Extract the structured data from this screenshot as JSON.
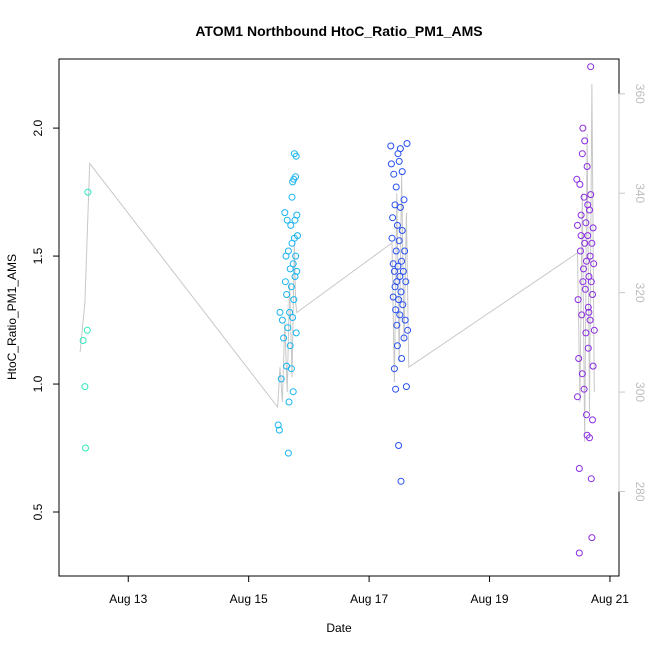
{
  "chart_data": {
    "type": "scatter",
    "title": "ATOM1 Northbound HtoC_Ratio_PM1_AMS",
    "xlabel": "Date",
    "ylabel": "HtoC_Ratio_PM1_AMS",
    "x_tick_labels": [
      "Aug 13",
      "Aug 15",
      "Aug 17",
      "Aug 19",
      "Aug 21"
    ],
    "x_tick_days": [
      13,
      15,
      17,
      19,
      21
    ],
    "xlim_days": [
      11.85,
      21.15
    ],
    "y_ticks": [
      0.5,
      1.0,
      1.5,
      2.0
    ],
    "y_tick_labels": [
      "0.5",
      "1.0",
      "1.5",
      "2.0"
    ],
    "ylim": [
      0.25,
      2.27
    ],
    "y2_ticks": [
      280,
      300,
      320,
      340,
      360
    ],
    "y2_tick_labels": [
      "280",
      "300",
      "320",
      "340",
      "360"
    ],
    "y2lim": [
      263,
      367
    ],
    "y2_color": "#c8c8c8",
    "grid": false,
    "legend": "none",
    "series": [
      {
        "color": "#2ee8c0",
        "points": [
          {
            "x": 12.25,
            "y": 1.17
          },
          {
            "x": 12.32,
            "y": 1.21
          },
          {
            "x": 12.28,
            "y": 0.99
          },
          {
            "x": 12.29,
            "y": 0.75
          },
          {
            "x": 12.33,
            "y": 1.75
          }
        ]
      },
      {
        "color": "#1ab4f0",
        "points": [
          {
            "x": 15.49,
            "y": 0.84
          },
          {
            "x": 15.51,
            "y": 0.82
          },
          {
            "x": 15.52,
            "y": 1.28
          },
          {
            "x": 15.54,
            "y": 1.02
          },
          {
            "x": 15.56,
            "y": 1.25
          },
          {
            "x": 15.58,
            "y": 1.18
          },
          {
            "x": 15.6,
            "y": 1.67
          },
          {
            "x": 15.61,
            "y": 1.4
          },
          {
            "x": 15.62,
            "y": 1.5
          },
          {
            "x": 15.63,
            "y": 1.35
          },
          {
            "x": 15.64,
            "y": 1.64
          },
          {
            "x": 15.65,
            "y": 1.22
          },
          {
            "x": 15.66,
            "y": 1.52
          },
          {
            "x": 15.66,
            "y": 0.73
          },
          {
            "x": 15.67,
            "y": 0.93
          },
          {
            "x": 15.68,
            "y": 1.28
          },
          {
            "x": 15.69,
            "y": 1.45
          },
          {
            "x": 15.7,
            "y": 1.62
          },
          {
            "x": 15.71,
            "y": 1.38
          },
          {
            "x": 15.72,
            "y": 1.55
          },
          {
            "x": 15.72,
            "y": 1.73
          },
          {
            "x": 15.73,
            "y": 1.79
          },
          {
            "x": 15.73,
            "y": 1.26
          },
          {
            "x": 15.74,
            "y": 1.47
          },
          {
            "x": 15.74,
            "y": 0.97
          },
          {
            "x": 15.75,
            "y": 1.8
          },
          {
            "x": 15.75,
            "y": 1.33
          },
          {
            "x": 15.76,
            "y": 1.9
          },
          {
            "x": 15.76,
            "y": 1.57
          },
          {
            "x": 15.77,
            "y": 1.64
          },
          {
            "x": 15.77,
            "y": 1.42
          },
          {
            "x": 15.78,
            "y": 1.81
          },
          {
            "x": 15.78,
            "y": 1.5
          },
          {
            "x": 15.79,
            "y": 1.89
          },
          {
            "x": 15.79,
            "y": 1.2
          },
          {
            "x": 15.8,
            "y": 1.66
          },
          {
            "x": 15.8,
            "y": 1.44
          },
          {
            "x": 15.81,
            "y": 1.58
          },
          {
            "x": 15.71,
            "y": 1.06
          },
          {
            "x": 15.69,
            "y": 1.15
          },
          {
            "x": 15.63,
            "y": 1.07
          }
        ]
      },
      {
        "color": "#2850f0",
        "points": [
          {
            "x": 17.36,
            "y": 1.93
          },
          {
            "x": 17.37,
            "y": 1.86
          },
          {
            "x": 17.38,
            "y": 1.57
          },
          {
            "x": 17.39,
            "y": 1.65
          },
          {
            "x": 17.4,
            "y": 1.47
          },
          {
            "x": 17.4,
            "y": 1.34
          },
          {
            "x": 17.41,
            "y": 1.82
          },
          {
            "x": 17.42,
            "y": 1.44
          },
          {
            "x": 17.42,
            "y": 1.06
          },
          {
            "x": 17.43,
            "y": 1.7
          },
          {
            "x": 17.43,
            "y": 1.38
          },
          {
            "x": 17.44,
            "y": 1.29
          },
          {
            "x": 17.44,
            "y": 0.98
          },
          {
            "x": 17.45,
            "y": 1.77
          },
          {
            "x": 17.45,
            "y": 1.52
          },
          {
            "x": 17.46,
            "y": 1.23
          },
          {
            "x": 17.46,
            "y": 1.4
          },
          {
            "x": 17.47,
            "y": 1.62
          },
          {
            "x": 17.47,
            "y": 1.15
          },
          {
            "x": 17.48,
            "y": 1.9
          },
          {
            "x": 17.48,
            "y": 1.46
          },
          {
            "x": 17.49,
            "y": 1.33
          },
          {
            "x": 17.49,
            "y": 0.76
          },
          {
            "x": 17.5,
            "y": 1.87
          },
          {
            "x": 17.5,
            "y": 1.56
          },
          {
            "x": 17.51,
            "y": 1.27
          },
          {
            "x": 17.51,
            "y": 1.42
          },
          {
            "x": 17.52,
            "y": 1.92
          },
          {
            "x": 17.52,
            "y": 1.69
          },
          {
            "x": 17.53,
            "y": 1.36
          },
          {
            "x": 17.53,
            "y": 0.62
          },
          {
            "x": 17.54,
            "y": 1.48
          },
          {
            "x": 17.54,
            "y": 1.1
          },
          {
            "x": 17.55,
            "y": 1.83
          },
          {
            "x": 17.55,
            "y": 1.6
          },
          {
            "x": 17.56,
            "y": 1.31
          },
          {
            "x": 17.57,
            "y": 1.44
          },
          {
            "x": 17.58,
            "y": 1.72
          },
          {
            "x": 17.58,
            "y": 1.18
          },
          {
            "x": 17.59,
            "y": 1.52
          },
          {
            "x": 17.6,
            "y": 1.25
          },
          {
            "x": 17.61,
            "y": 1.4
          },
          {
            "x": 17.62,
            "y": 0.99
          },
          {
            "x": 17.63,
            "y": 1.94
          },
          {
            "x": 17.64,
            "y": 1.21
          }
        ]
      },
      {
        "color": "#8a2be2",
        "points": [
          {
            "x": 20.45,
            "y": 1.8
          },
          {
            "x": 20.46,
            "y": 1.62
          },
          {
            "x": 20.46,
            "y": 0.95
          },
          {
            "x": 20.47,
            "y": 1.33
          },
          {
            "x": 20.48,
            "y": 1.1
          },
          {
            "x": 20.49,
            "y": 0.67
          },
          {
            "x": 20.49,
            "y": 0.34
          },
          {
            "x": 20.5,
            "y": 1.78
          },
          {
            "x": 20.51,
            "y": 1.52
          },
          {
            "x": 20.52,
            "y": 1.66
          },
          {
            "x": 20.53,
            "y": 1.27
          },
          {
            "x": 20.54,
            "y": 1.9
          },
          {
            "x": 20.54,
            "y": 1.04
          },
          {
            "x": 20.55,
            "y": 2.0
          },
          {
            "x": 20.56,
            "y": 1.45
          },
          {
            "x": 20.57,
            "y": 1.73
          },
          {
            "x": 20.57,
            "y": 0.98
          },
          {
            "x": 20.58,
            "y": 1.55
          },
          {
            "x": 20.59,
            "y": 1.37
          },
          {
            "x": 20.6,
            "y": 1.63
          },
          {
            "x": 20.6,
            "y": 1.2
          },
          {
            "x": 20.61,
            "y": 1.48
          },
          {
            "x": 20.62,
            "y": 1.85
          },
          {
            "x": 20.62,
            "y": 0.8
          },
          {
            "x": 20.63,
            "y": 1.58
          },
          {
            "x": 20.64,
            "y": 1.3
          },
          {
            "x": 20.64,
            "y": 1.14
          },
          {
            "x": 20.65,
            "y": 1.42
          },
          {
            "x": 20.66,
            "y": 1.68
          },
          {
            "x": 20.66,
            "y": 0.79
          },
          {
            "x": 20.67,
            "y": 1.5
          },
          {
            "x": 20.67,
            "y": 1.25
          },
          {
            "x": 20.68,
            "y": 2.24
          },
          {
            "x": 20.68,
            "y": 1.74
          },
          {
            "x": 20.69,
            "y": 0.63
          },
          {
            "x": 20.69,
            "y": 1.4
          },
          {
            "x": 20.7,
            "y": 0.4
          },
          {
            "x": 20.7,
            "y": 1.55
          },
          {
            "x": 20.71,
            "y": 1.35
          },
          {
            "x": 20.72,
            "y": 1.61
          },
          {
            "x": 20.72,
            "y": 1.07
          },
          {
            "x": 20.73,
            "y": 1.47
          },
          {
            "x": 20.74,
            "y": 1.21
          },
          {
            "x": 20.55,
            "y": 1.4
          },
          {
            "x": 20.52,
            "y": 1.58
          },
          {
            "x": 20.58,
            "y": 1.95
          },
          {
            "x": 20.61,
            "y": 0.88
          },
          {
            "x": 20.63,
            "y": 1.7
          },
          {
            "x": 20.65,
            "y": 1.28
          },
          {
            "x": 20.71,
            "y": 0.86
          }
        ]
      }
    ],
    "secondary_line": {
      "color": "#c8c8c8",
      "points": [
        {
          "x": 12.2,
          "y": 308
        },
        {
          "x": 12.28,
          "y": 318
        },
        {
          "x": 12.36,
          "y": 346
        },
        {
          "x": 15.48,
          "y": 297
        },
        {
          "x": 15.52,
          "y": 305
        },
        {
          "x": 15.56,
          "y": 298
        },
        {
          "x": 15.6,
          "y": 314
        },
        {
          "x": 15.64,
          "y": 300
        },
        {
          "x": 15.68,
          "y": 322
        },
        {
          "x": 15.72,
          "y": 303
        },
        {
          "x": 15.76,
          "y": 330
        },
        {
          "x": 15.78,
          "y": 318
        },
        {
          "x": 15.8,
          "y": 316
        },
        {
          "x": 17.38,
          "y": 330
        },
        {
          "x": 17.42,
          "y": 302
        },
        {
          "x": 17.46,
          "y": 340
        },
        {
          "x": 17.5,
          "y": 306
        },
        {
          "x": 17.54,
          "y": 344
        },
        {
          "x": 17.58,
          "y": 310
        },
        {
          "x": 17.62,
          "y": 336
        },
        {
          "x": 17.66,
          "y": 305
        },
        {
          "x": 20.46,
          "y": 328
        },
        {
          "x": 20.5,
          "y": 298
        },
        {
          "x": 20.54,
          "y": 340
        },
        {
          "x": 20.58,
          "y": 290
        },
        {
          "x": 20.62,
          "y": 352
        },
        {
          "x": 20.66,
          "y": 296
        },
        {
          "x": 20.7,
          "y": 362
        },
        {
          "x": 20.74,
          "y": 300
        }
      ]
    }
  }
}
